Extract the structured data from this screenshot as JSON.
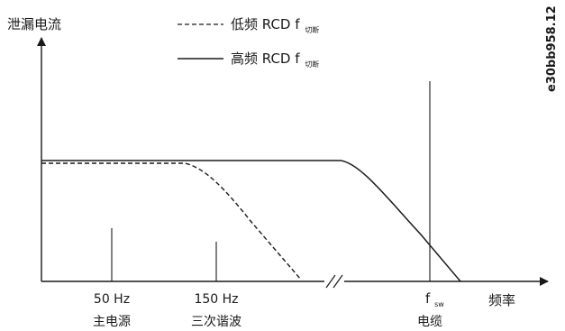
{
  "axes": {
    "y_label": "泄漏电流",
    "x_label": "频率"
  },
  "legend": {
    "items": [
      {
        "line": "dashed",
        "label": "低频 RCD f",
        "sub": "切断"
      },
      {
        "line": "solid",
        "label": "高频 RCD f",
        "sub": "切断"
      }
    ]
  },
  "x_ticks": [
    {
      "label": "50 Hz",
      "caption": "主电源"
    },
    {
      "label": "150 Hz",
      "caption": "三次谐波"
    },
    {
      "label": "f",
      "sub": "sw",
      "caption": "电缆"
    }
  ],
  "figure_code": "e30bb958.12"
}
